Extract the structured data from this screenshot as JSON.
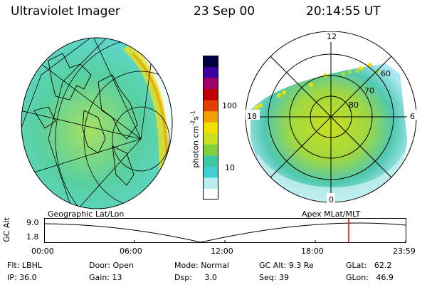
{
  "header": {
    "instrument": "Ultraviolet Imager",
    "date": "23 Sep 00",
    "time": "20:14:55 UT"
  },
  "left_panel": {
    "label": "Geographic Lat/Lon"
  },
  "right_panel": {
    "label": "Apex MLat/MLT",
    "mlt_labels": [
      "12",
      "18",
      "6",
      "0"
    ],
    "mlat_labels": [
      "60",
      "70",
      "80"
    ]
  },
  "colorbar": {
    "unit_label": "photon cm",
    "unit_exp1": "-2",
    "unit_mid": "s",
    "unit_exp2": "-1",
    "tick_labels": [
      "100",
      "10"
    ],
    "scale": "log",
    "colors": [
      "#ffffff",
      "#b8eef0",
      "#40d0d0",
      "#40c8a0",
      "#80d040",
      "#c8e020",
      "#f0e000",
      "#f0a000",
      "#e04000",
      "#c00000",
      "#a0006a",
      "#4000a0",
      "#000040"
    ]
  },
  "altitude_plot": {
    "ylabel": "GC Alt",
    "y_ticks": [
      "9.0",
      "1.8"
    ],
    "x_ticks": [
      "00:00",
      "06:00",
      "12:00",
      "18:00",
      "23:59"
    ],
    "marker_color": "#e00000"
  },
  "info": {
    "row1": [
      {
        "key": "Flt:",
        "val": "LBHL"
      },
      {
        "key": "Door:",
        "val": "Open"
      },
      {
        "key": "Mode:",
        "val": "Normal"
      },
      {
        "key": "GC Alt:",
        "val": "9.3 Re"
      },
      {
        "key": "GLat:",
        "val": "62.2"
      }
    ],
    "row2": [
      {
        "key": "IP:",
        "val": "36.0"
      },
      {
        "key": "Gain:",
        "val": "13"
      },
      {
        "key": "Dsp:",
        "val": "3.0"
      },
      {
        "key": "Seq:",
        "val": "39"
      },
      {
        "key": "GLon:",
        "val": "46.9"
      }
    ]
  }
}
